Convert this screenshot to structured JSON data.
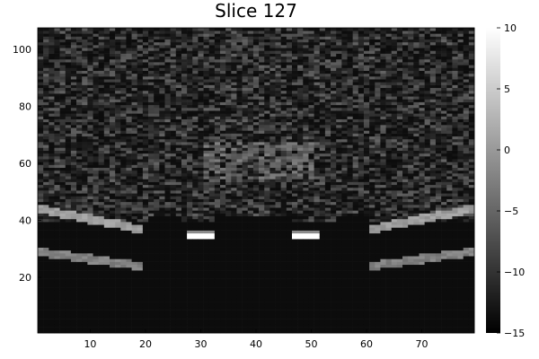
{
  "chart_data": {
    "type": "heatmap",
    "title": "Slice 127",
    "xlabel": "",
    "ylabel": "",
    "xlim": [
      0.5,
      79.5
    ],
    "ylim": [
      0.5,
      107.5
    ],
    "x_ticks": [
      "10",
      "20",
      "30",
      "40",
      "50",
      "60",
      "70"
    ],
    "y_ticks": [
      "20",
      "40",
      "60",
      "80",
      "100"
    ],
    "colorbar": {
      "range": [
        -15,
        10
      ],
      "ticks": [
        "10",
        "5",
        "0",
        "−5",
        "−10",
        "−15"
      ],
      "colormap": "grayscale"
    },
    "grid": false,
    "legend": "none",
    "base_value": -15,
    "features": [
      {
        "name": "upper-left-arc",
        "value": 0,
        "x_range": [
          1,
          19
        ],
        "center_y": 44,
        "end_y": 37,
        "thickness": 3
      },
      {
        "name": "lower-left-arc",
        "value": -3,
        "x_range": [
          1,
          19
        ],
        "center_y": 29,
        "end_y": 24,
        "thickness": 3
      },
      {
        "name": "upper-right-arc",
        "value": 0,
        "x_range": [
          61,
          79
        ],
        "center_y": 44,
        "end_y": 37,
        "thickness": 3
      },
      {
        "name": "lower-right-arc",
        "value": -3,
        "x_range": [
          61,
          79
        ],
        "center_y": 29,
        "end_y": 24,
        "thickness": 3
      },
      {
        "name": "left-white-step",
        "value": 10,
        "x_range": [
          28,
          32
        ],
        "y_range": [
          34,
          36
        ]
      },
      {
        "name": "right-white-step",
        "value": 10,
        "x_range": [
          47,
          51
        ],
        "y_range": [
          34,
          36
        ]
      },
      {
        "name": "central-bright-band",
        "value": -6,
        "x_range": [
          31,
          50
        ],
        "y_range": [
          55,
          67
        ]
      }
    ],
    "noise_region_y": [
      40,
      107
    ],
    "noise_value_range": [
      -15,
      -6
    ]
  }
}
